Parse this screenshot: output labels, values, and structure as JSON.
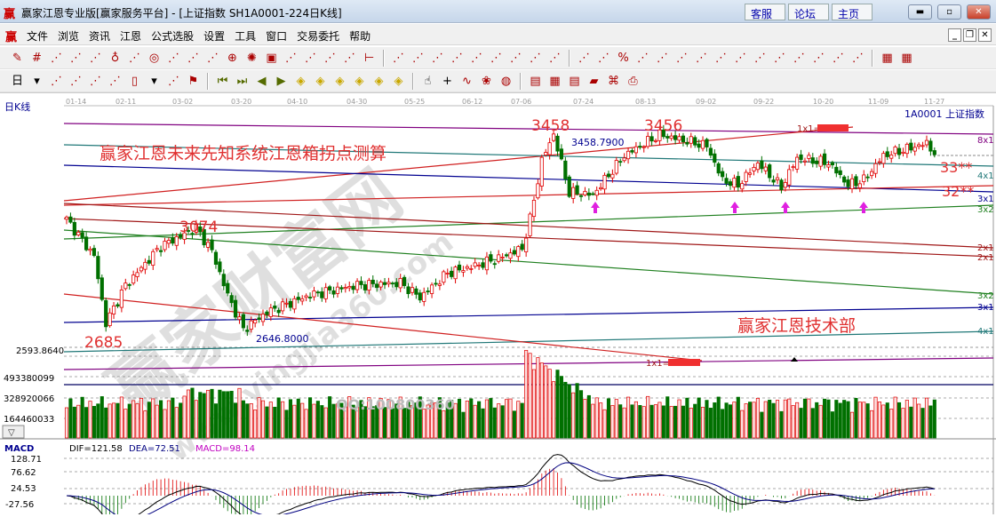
{
  "window": {
    "title": "赢家江恩专业版[赢家服务平台] - [上证指数  SH1A0001-224日K线]",
    "logo": "赢",
    "links": [
      "客服",
      "论坛",
      "主页"
    ],
    "controls": [
      "minimize",
      "restore",
      "close"
    ]
  },
  "menu": {
    "logo": "赢",
    "items": [
      "文件",
      "浏览",
      "资讯",
      "江恩",
      "公式选股",
      "设置",
      "工具",
      "窗口",
      "交易委托",
      "帮助"
    ]
  },
  "toolbar1": [
    "pen",
    "grid",
    "gold-split",
    "gold-split-2",
    "fib-lines",
    "cycle",
    "brush",
    "circle",
    "parallel",
    "gann-n2",
    "fan",
    "crosshair",
    "target",
    "box",
    "cycle-lines",
    "gann-square",
    "win-box",
    "calendar-grid",
    "measure",
    "|",
    "line-tool",
    "gann-fan",
    "gann-box",
    "gann-grid",
    "angle",
    "zigzag",
    "grid-red",
    "grid-blue",
    "speed-lines",
    "|",
    "ratio",
    "percent-red",
    "percent",
    "percent-lines",
    "gold-circle",
    "gold-lines",
    "trumpet",
    "sine",
    "gold-level",
    "angle-j",
    "angle-f",
    "angle-gold",
    "angle-god",
    "angle-win",
    "angle-four",
    "|",
    "table",
    "table-2"
  ],
  "toolbar2": [
    "period-day",
    "dropdown",
    "chart-type",
    "list",
    "bars-3",
    "bars-9",
    "candle",
    "dropdown",
    "indicator",
    "flag",
    "|",
    "first",
    "last",
    "prev",
    "next",
    "zoom-left",
    "zoom-right",
    "zoom-in",
    "zoom-out",
    "compress",
    "expand",
    "|",
    "hand",
    "cross",
    "wave",
    "node",
    "globe",
    "|",
    "calendar",
    "calculator",
    "notes",
    "save",
    "network",
    "printer"
  ],
  "chart": {
    "period_label": "日K线",
    "code_label": "1A0001  上证指数",
    "dates": [
      "01-14",
      "02-11",
      "03-02",
      "03-20",
      "04-10",
      "04-30",
      "05-25",
      "06-12",
      "07-06",
      "07-24",
      "08-13",
      "09-02",
      "09-22",
      "10-20",
      "11-09",
      "11-27"
    ],
    "headline": "赢家江恩未来先知系统江恩箱拐点测算",
    "department": "赢家江恩技术部",
    "price_marks": [
      "3458",
      "3456",
      "3074",
      "2685"
    ],
    "high_value": "3458.7900",
    "low_value": "2646.8000",
    "targets": [
      "33**",
      "32**"
    ],
    "line_labels": [
      "8x1",
      "4x1",
      "3x1",
      "3x2",
      "2x1",
      "2x1",
      "3x2",
      "3x1",
      "4x1"
    ],
    "box_label": "1x1=",
    "price_axis": "2593.8640",
    "watermark": "赢家财富网",
    "watermark_url": "www.yingjia360.com",
    "qq": "QQ:100800360",
    "price_waypoints": [
      [
        0,
        3110
      ],
      [
        7,
        2960
      ],
      [
        10,
        2685
      ],
      [
        15,
        2840
      ],
      [
        24,
        3000
      ],
      [
        33,
        3074
      ],
      [
        37,
        2980
      ],
      [
        41,
        2800
      ],
      [
        45,
        2660
      ],
      [
        51,
        2730
      ],
      [
        62,
        2800
      ],
      [
        74,
        2840
      ],
      [
        85,
        2850
      ],
      [
        90,
        2790
      ],
      [
        97,
        2890
      ],
      [
        104,
        2920
      ],
      [
        110,
        2950
      ],
      [
        116,
        2990
      ],
      [
        118,
        3110
      ],
      [
        121,
        3350
      ],
      [
        124,
        3458
      ],
      [
        128,
        3220
      ],
      [
        134,
        3210
      ],
      [
        142,
        3370
      ],
      [
        151,
        3456
      ],
      [
        163,
        3410
      ],
      [
        167,
        3270
      ],
      [
        171,
        3250
      ],
      [
        176,
        3340
      ],
      [
        182,
        3240
      ],
      [
        186,
        3360
      ],
      [
        194,
        3340
      ],
      [
        199,
        3250
      ],
      [
        203,
        3270
      ],
      [
        208,
        3370
      ],
      [
        219,
        3420
      ],
      [
        221,
        3380
      ]
    ]
  },
  "volume": {
    "axis": [
      "493380099",
      "328920066",
      "164460033"
    ],
    "toggle": "▽"
  },
  "macd": {
    "label": "MACD",
    "dif": "DIF=121.58",
    "dea": "DEA=72.51",
    "macd": "MACD=98.14",
    "axis": [
      "128.71",
      "76.62",
      "24.53",
      "-27.56"
    ]
  },
  "colors": {
    "up": "#e00000",
    "down": "#007000",
    "label_red": "#e03030",
    "arrow": "#e020e0",
    "dif": "#000000",
    "dea": "#000080",
    "macd_text": "#c000c0"
  }
}
